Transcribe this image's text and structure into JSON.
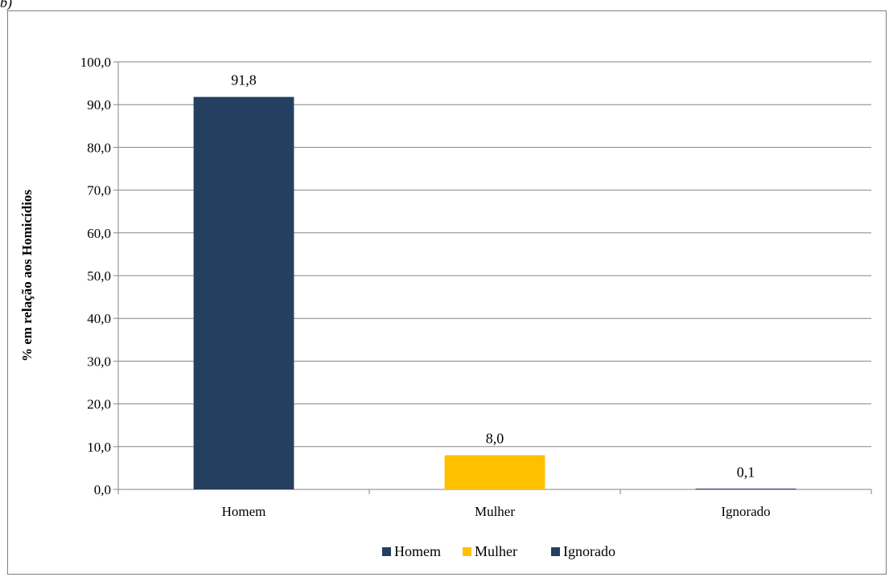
{
  "figure": {
    "corner_label": "b)"
  },
  "chart_data": {
    "type": "bar",
    "categories": [
      "Homem",
      "Mulher",
      "Ignorado"
    ],
    "values": [
      91.8,
      8.0,
      0.1
    ],
    "value_labels": [
      "91,8",
      "8,0",
      "0,1"
    ],
    "colors": [
      "#243f60",
      "#ffc000",
      "#243f60"
    ],
    "ylabel": "% em relação aos Homicídios",
    "xlabel": "",
    "ylim": [
      0,
      100
    ],
    "yticks": [
      0,
      10,
      20,
      30,
      40,
      50,
      60,
      70,
      80,
      90,
      100
    ],
    "ytick_labels": [
      "0,0",
      "10,0",
      "20,0",
      "30,0",
      "40,0",
      "50,0",
      "60,0",
      "70,0",
      "80,0",
      "90,0",
      "100,0"
    ],
    "grid": true,
    "legend": {
      "placement": "bottom-center",
      "entries": [
        {
          "name": "Homem",
          "color": "#243f60"
        },
        {
          "name": "Mulher",
          "color": "#ffc000"
        },
        {
          "name": "Ignorado",
          "color": "#243f60"
        }
      ]
    }
  }
}
